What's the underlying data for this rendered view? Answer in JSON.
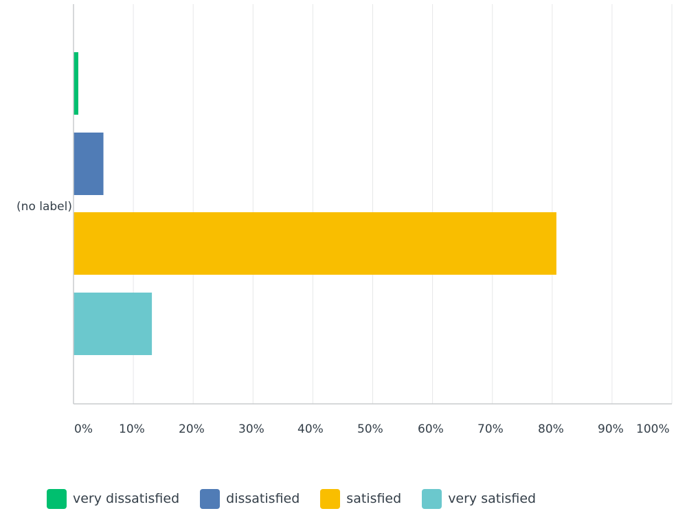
{
  "chart_data": {
    "type": "bar",
    "orientation": "horizontal",
    "categories": [
      "(no label)"
    ],
    "series": [
      {
        "name": "very dissatisfied",
        "values": [
          0.8
        ],
        "color": "#00bf6f"
      },
      {
        "name": "dissatisfied",
        "values": [
          5
        ],
        "color": "#507cb6"
      },
      {
        "name": "satisfied",
        "values": [
          80.7
        ],
        "color": "#f9be00"
      },
      {
        "name": "very satisfied",
        "values": [
          13.1
        ],
        "color": "#6bc8cd"
      }
    ],
    "xlim": [
      0,
      100
    ],
    "xticks": [
      "0%",
      "10%",
      "20%",
      "30%",
      "40%",
      "50%",
      "60%",
      "70%",
      "80%",
      "90%",
      "100%"
    ],
    "grid": true,
    "legend": "bottom"
  }
}
